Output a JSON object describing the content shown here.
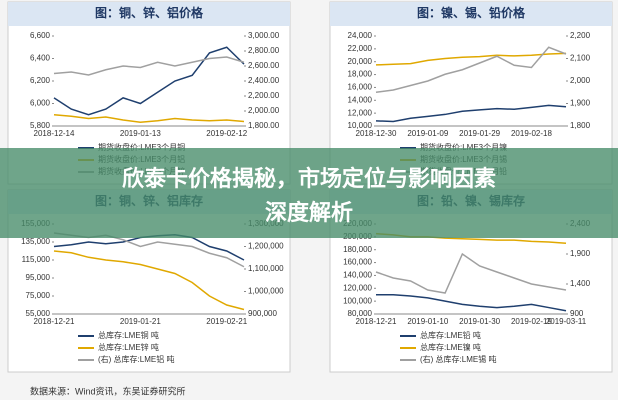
{
  "banner_title": [
    "欣泰卡价格揭秘，市场定位与影响因素",
    "深度解析"
  ],
  "source": "数据来源：Wind资讯，东吴证券研究所",
  "chart_data": [
    {
      "type": "line",
      "title": "图：铜、锌、铝价格",
      "categories": [
        "2018-12-14",
        null,
        null,
        null,
        null,
        "2019-01-13",
        null,
        null,
        null,
        null,
        "2019-02-12",
        null
      ],
      "ylim": [
        5800,
        6600
      ],
      "yticks": [
        {
          "value": 5800,
          "label": "5,800"
        },
        {
          "value": 6000,
          "label": "6,000"
        },
        {
          "value": 6200,
          "label": "6,200"
        },
        {
          "value": 6400,
          "label": "6,400"
        },
        {
          "value": 6600,
          "label": "6,600"
        }
      ],
      "y2lim": [
        1800,
        3000
      ],
      "y2ticks": [
        {
          "value": 1800,
          "label": "1,800.00"
        },
        {
          "value": 2000,
          "label": "2,000.00"
        },
        {
          "value": 2200,
          "label": "2,200.00"
        },
        {
          "value": 2400,
          "label": "2,400.00"
        },
        {
          "value": 2600,
          "label": "2,600.00"
        },
        {
          "value": 2800,
          "label": "2,800.00"
        },
        {
          "value": 3000,
          "label": "3,000.00"
        }
      ],
      "series": [
        {
          "name": "期货收盘价:LME3个月铜",
          "color": "#1f3f6e",
          "values": [
            6050,
            5950,
            5900,
            5950,
            6050,
            6000,
            6100,
            6200,
            6250,
            6450,
            6500,
            6350
          ]
        },
        {
          "name": "期货收盘价:LME3个月铝",
          "color": "#e0a800",
          "axis": "y2",
          "values": [
            1950,
            1930,
            1900,
            1920,
            1880,
            1850,
            1870,
            1900,
            1880,
            1870,
            1880,
            1860
          ]
        },
        {
          "name": "期货收盘价:LME3个月锌",
          "color": "#a0a0a0",
          "axis": "y2",
          "values": [
            2500,
            2520,
            2480,
            2550,
            2600,
            2580,
            2650,
            2600,
            2650,
            2700,
            2720,
            2650
          ]
        }
      ]
    },
    {
      "type": "line",
      "title": "图：镍、锡、铅价格",
      "categories": [
        "2018-12-30",
        null,
        null,
        "2019-01-09",
        null,
        null,
        "2019-01-29",
        null,
        null,
        "2019-02-18",
        null,
        null
      ],
      "ylim": [
        10000,
        24000
      ],
      "yticks": [
        {
          "value": 10000,
          "label": "10,000"
        },
        {
          "value": 12000,
          "label": "12,000"
        },
        {
          "value": 14000,
          "label": "14,000"
        },
        {
          "value": 16000,
          "label": "16,000"
        },
        {
          "value": 18000,
          "label": "18,000"
        },
        {
          "value": 20000,
          "label": "20,000"
        },
        {
          "value": 22000,
          "label": "22,000"
        },
        {
          "value": 24000,
          "label": "24,000"
        }
      ],
      "y2lim": [
        1800,
        2200
      ],
      "y2ticks": [
        {
          "value": 1800,
          "label": "1,800"
        },
        {
          "value": 1900,
          "label": "1,900"
        },
        {
          "value": 2000,
          "label": "2,000"
        },
        {
          "value": 2100,
          "label": "2,100"
        },
        {
          "value": 2200,
          "label": "2,200"
        }
      ],
      "series": [
        {
          "name": "期货收盘价:LME3个月镍",
          "color": "#1f3f6e",
          "values": [
            10800,
            10700,
            11200,
            11500,
            11800,
            12300,
            12500,
            12700,
            12600,
            12900,
            13200,
            13000
          ]
        },
        {
          "name": "期货收盘价:LME3个月锡",
          "color": "#e0a800",
          "values": [
            19500,
            19600,
            19700,
            20200,
            20500,
            20700,
            20800,
            21000,
            20900,
            21000,
            21200,
            21300
          ]
        },
        {
          "name": "期货收盘价:LME3个月铅",
          "color": "#a0a0a0",
          "axis": "y2",
          "values": [
            1950,
            1960,
            1980,
            2000,
            2030,
            2050,
            2080,
            2110,
            2070,
            2060,
            2150,
            2120
          ]
        }
      ]
    },
    {
      "type": "line",
      "title": "图：铜、锌、铝库存",
      "categories": [
        "2018-12-21",
        null,
        null,
        null,
        null,
        "2019-01-21",
        null,
        null,
        null,
        null,
        "2019-02-21",
        null
      ],
      "ylim": [
        55000,
        155000
      ],
      "yticks": [
        {
          "value": 55000,
          "label": "55,000"
        },
        {
          "value": 75000,
          "label": "75,000"
        },
        {
          "value": 95000,
          "label": "95,000"
        },
        {
          "value": 115000,
          "label": "115,000"
        },
        {
          "value": 135000,
          "label": "135,000"
        },
        {
          "value": 155000,
          "label": "155,000"
        }
      ],
      "y2lim": [
        900000,
        1300000
      ],
      "y2ticks": [
        {
          "value": 900000,
          "label": "900,000"
        },
        {
          "value": 1000000,
          "label": "1,000,000"
        },
        {
          "value": 1100000,
          "label": "1,100,000"
        },
        {
          "value": 1200000,
          "label": "1,200,000"
        },
        {
          "value": 1300000,
          "label": "1,300,000"
        }
      ],
      "series": [
        {
          "name": "总库存:LME铜 吨",
          "color": "#1f3f6e",
          "values": [
            130000,
            132000,
            135000,
            133000,
            135000,
            140000,
            142000,
            143000,
            140000,
            130000,
            125000,
            115000
          ]
        },
        {
          "name": "总库存:LME锌 吨",
          "color": "#e0a800",
          "values": [
            125000,
            123000,
            118000,
            115000,
            113000,
            110000,
            105000,
            100000,
            90000,
            75000,
            65000,
            60000
          ]
        },
        {
          "name": "(右) 总库存:LME铝 吨",
          "color": "#a0a0a0",
          "axis": "y2",
          "values": [
            1260000,
            1250000,
            1240000,
            1250000,
            1230000,
            1200000,
            1220000,
            1210000,
            1200000,
            1170000,
            1150000,
            1110000
          ]
        }
      ]
    },
    {
      "type": "line",
      "title": "图：铅、镍、锡库存",
      "categories": [
        "2018-12-21",
        null,
        null,
        "2019-01-10",
        null,
        null,
        "2019-01-30",
        null,
        null,
        "2019-02-19",
        null,
        "2019-03-11"
      ],
      "ylim": [
        80000,
        220000
      ],
      "yticks": [
        {
          "value": 80000,
          "label": "80,000"
        },
        {
          "value": 100000,
          "label": "100,000"
        },
        {
          "value": 120000,
          "label": "120,000"
        },
        {
          "value": 140000,
          "label": "140,000"
        },
        {
          "value": 160000,
          "label": "160,000"
        },
        {
          "value": 180000,
          "label": "180,000"
        },
        {
          "value": 200000,
          "label": "200,000"
        },
        {
          "value": 220000,
          "label": "220,000"
        }
      ],
      "y2lim": [
        900,
        2400
      ],
      "y2ticks": [
        900,
        {
          "value": 1400,
          "label": "1,400"
        },
        {
          "value": 1900,
          "label": "1,900"
        },
        {
          "value": 2400,
          "label": "2,400"
        }
      ],
      "series": [
        {
          "name": "总库存:LME铅 吨",
          "color": "#1f3f6e",
          "values": [
            110000,
            110000,
            108000,
            105000,
            100000,
            95000,
            92000,
            90000,
            92000,
            95000,
            90000,
            85000
          ]
        },
        {
          "name": "总库存:LME镍 吨",
          "color": "#e0a800",
          "values": [
            205000,
            203000,
            200000,
            200000,
            198000,
            197000,
            196000,
            195000,
            195000,
            193000,
            192000,
            190000
          ]
        },
        {
          "name": "(右) 总库存:LME锡 吨",
          "color": "#a0a0a0",
          "axis": "y2",
          "values": [
            1600,
            1500,
            1450,
            1300,
            1250,
            1900,
            1700,
            1600,
            1500,
            1400,
            1350,
            1300
          ]
        }
      ]
    }
  ]
}
